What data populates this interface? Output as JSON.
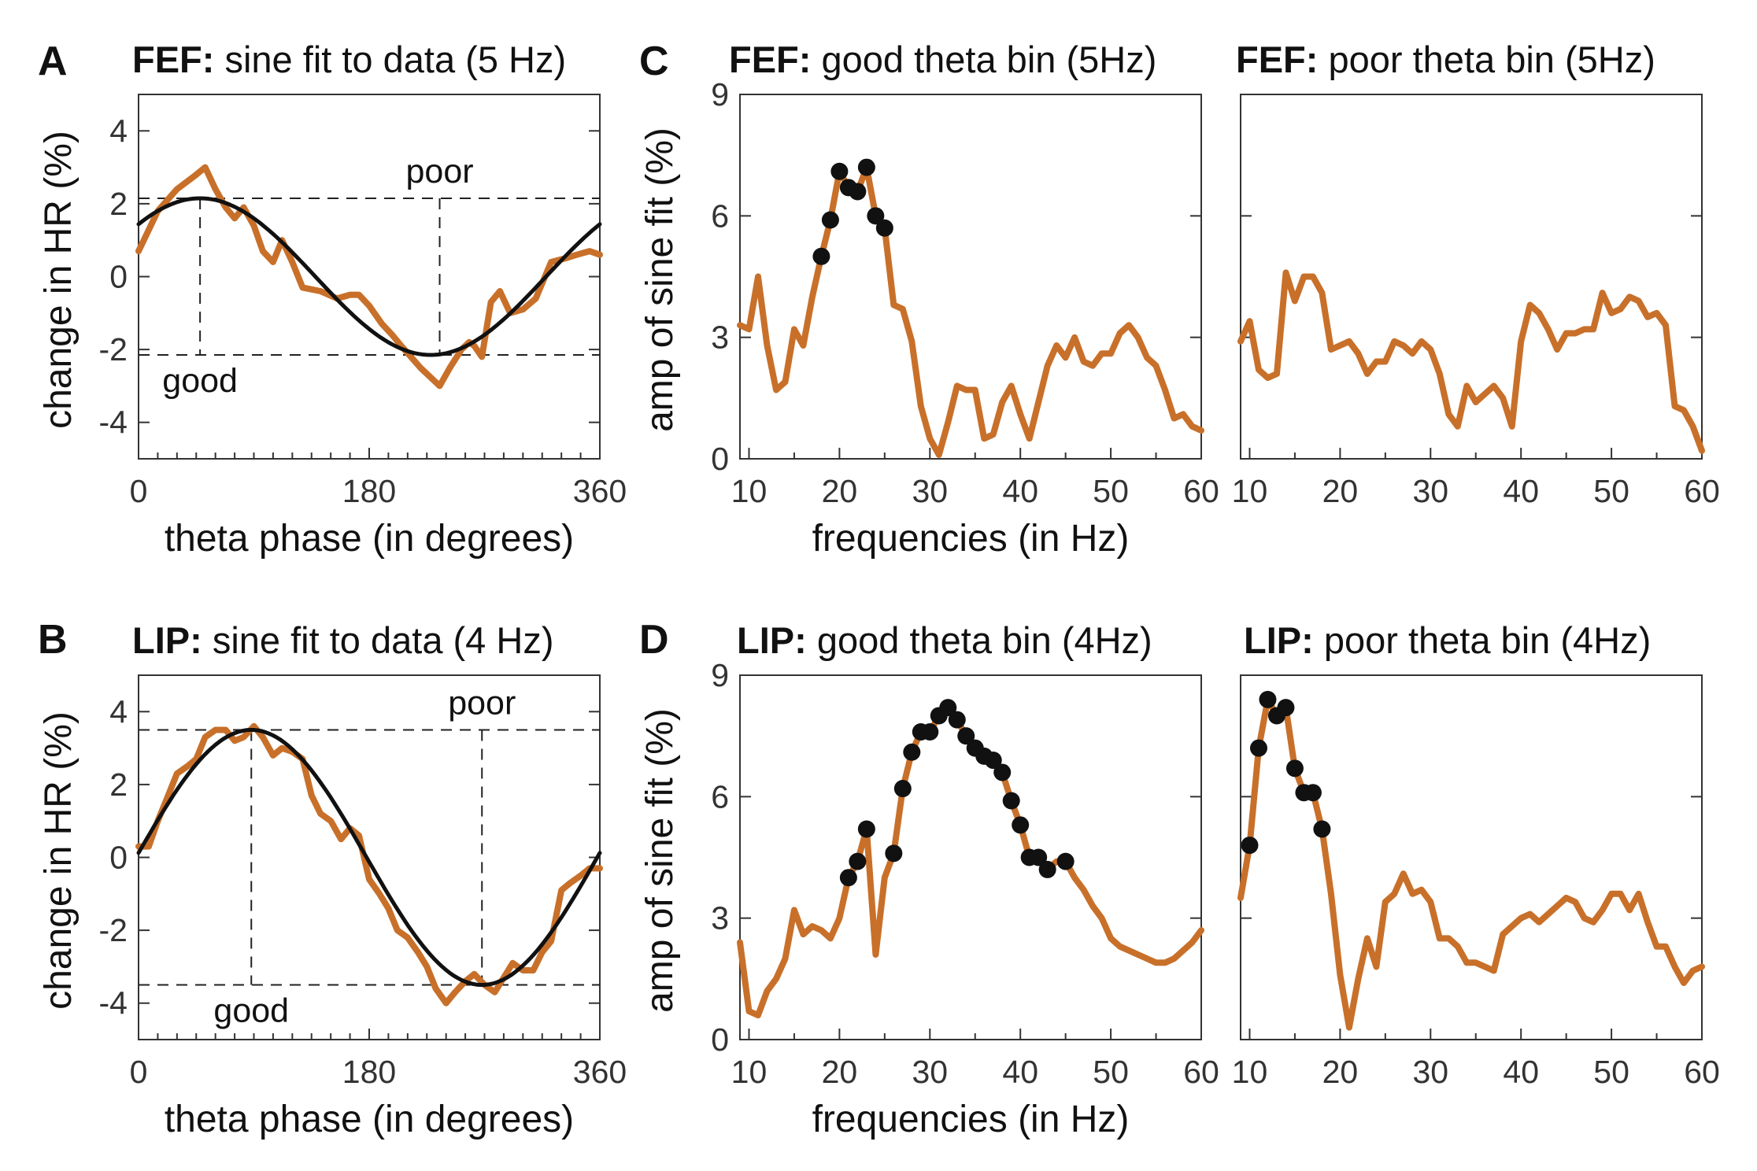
{
  "colors": {
    "data": "#c8702a",
    "fit": "#111111",
    "marker": "#111111"
  },
  "panel_letters": [
    "A",
    "B",
    "C",
    "D"
  ],
  "chart_data": [
    {
      "id": "fef_sine",
      "type": "line",
      "title_bold": "FEF:",
      "title_rest": " sine fit to data (5 Hz)",
      "xlabel": "theta phase (in degrees)",
      "ylabel": "change in HR (%)",
      "xlim": [
        0,
        360
      ],
      "ylim": [
        -5,
        5
      ],
      "xticks": [
        0,
        180,
        360
      ],
      "yticks": [
        -4,
        -2,
        0,
        2,
        4
      ],
      "annotations": {
        "poor": "poor",
        "good": "good"
      },
      "reference": {
        "peak_x": 48,
        "peak_y": 2.15,
        "trough_x": 235,
        "trough_y": -2.15
      },
      "series": [
        {
          "kind": "data",
          "x": [
            0,
            15,
            30,
            45,
            52,
            60,
            68,
            75,
            82,
            90,
            97,
            105,
            112,
            120,
            128,
            142,
            155,
            165,
            172,
            180,
            190,
            198,
            205,
            210,
            220,
            235,
            243,
            252,
            258,
            262,
            268,
            275,
            282,
            290,
            300,
            310,
            322,
            333,
            342,
            352,
            360
          ],
          "y": [
            0.7,
            1.8,
            2.4,
            2.8,
            3.0,
            2.4,
            1.9,
            1.6,
            1.9,
            1.4,
            0.7,
            0.4,
            1.0,
            0.4,
            -0.3,
            -0.4,
            -0.6,
            -0.5,
            -0.5,
            -0.8,
            -1.3,
            -1.6,
            -1.9,
            -2.1,
            -2.5,
            -3.0,
            -2.5,
            -2.0,
            -1.8,
            -1.9,
            -2.2,
            -0.7,
            -0.4,
            -1.0,
            -0.9,
            -0.6,
            0.4,
            0.5,
            0.6,
            0.7,
            0.6
          ]
        },
        {
          "kind": "fit",
          "amplitude": 2.15,
          "peak_deg": 48,
          "offset": 0
        }
      ]
    },
    {
      "id": "fef_good",
      "type": "line",
      "title_bold": "FEF:",
      "title_rest": " good theta bin (5Hz)",
      "xlabel": "frequencies (in Hz)",
      "ylabel": "amp of sine fit (%)",
      "xlim": [
        9,
        60
      ],
      "ylim": [
        0,
        9
      ],
      "xticks": [
        10,
        20,
        30,
        40,
        50,
        60
      ],
      "yticks": [
        0,
        3,
        6,
        9
      ],
      "series": [
        {
          "kind": "data",
          "x": [
            9,
            10,
            11,
            12,
            13,
            14,
            15,
            16,
            17,
            18,
            19,
            20,
            21,
            22,
            23,
            24,
            25,
            26,
            27,
            28,
            29,
            30,
            31,
            32,
            33,
            34,
            35,
            36,
            37,
            38,
            39,
            40,
            41,
            42,
            43,
            44,
            45,
            46,
            47,
            48,
            49,
            50,
            51,
            52,
            53,
            54,
            55,
            56,
            57,
            58,
            59,
            60
          ],
          "y": [
            3.3,
            3.2,
            4.5,
            2.8,
            1.7,
            1.9,
            3.2,
            2.8,
            4.0,
            5.0,
            5.9,
            7.1,
            6.7,
            6.6,
            7.2,
            6.0,
            5.7,
            3.8,
            3.7,
            2.9,
            1.3,
            0.5,
            0.1,
            0.9,
            1.8,
            1.7,
            1.7,
            0.5,
            0.6,
            1.4,
            1.8,
            1.1,
            0.5,
            1.4,
            2.3,
            2.8,
            2.5,
            3.0,
            2.4,
            2.3,
            2.6,
            2.6,
            3.1,
            3.3,
            3.0,
            2.5,
            2.3,
            1.7,
            1.0,
            1.1,
            0.8,
            0.7
          ],
          "markers_x": [
            18,
            19,
            20,
            21,
            22,
            23,
            24,
            25
          ]
        }
      ]
    },
    {
      "id": "fef_poor",
      "type": "line",
      "title_bold": "FEF:",
      "title_rest": " poor theta bin (5Hz)",
      "xlabel": "",
      "ylabel": "",
      "xlim": [
        9,
        60
      ],
      "ylim": [
        0,
        9
      ],
      "xticks": [
        10,
        20,
        30,
        40,
        50,
        60
      ],
      "yticks": [
        0,
        3,
        6,
        9
      ],
      "show_yticklabels": false,
      "series": [
        {
          "kind": "data",
          "x": [
            9,
            10,
            11,
            12,
            13,
            14,
            15,
            16,
            17,
            18,
            19,
            20,
            21,
            22,
            23,
            24,
            25,
            26,
            27,
            28,
            29,
            30,
            31,
            32,
            33,
            34,
            35,
            36,
            37,
            38,
            39,
            40,
            41,
            42,
            43,
            44,
            45,
            46,
            47,
            48,
            49,
            50,
            51,
            52,
            53,
            54,
            55,
            56,
            57,
            58,
            59,
            60
          ],
          "y": [
            2.9,
            3.4,
            2.2,
            2.0,
            2.1,
            4.6,
            3.9,
            4.5,
            4.5,
            4.1,
            2.7,
            2.8,
            2.9,
            2.6,
            2.1,
            2.4,
            2.4,
            2.9,
            2.8,
            2.6,
            2.9,
            2.7,
            2.1,
            1.1,
            0.8,
            1.8,
            1.4,
            1.6,
            1.8,
            1.5,
            0.8,
            2.9,
            3.8,
            3.6,
            3.2,
            2.7,
            3.1,
            3.1,
            3.2,
            3.2,
            4.1,
            3.6,
            3.7,
            4.0,
            3.9,
            3.5,
            3.6,
            3.3,
            1.3,
            1.2,
            0.8,
            0.2
          ]
        }
      ]
    },
    {
      "id": "lip_sine",
      "type": "line",
      "title_bold": "LIP:",
      "title_rest": " sine fit to data (4 Hz)",
      "xlabel": "theta phase (in degrees)",
      "ylabel": "change in HR (%)",
      "xlim": [
        0,
        360
      ],
      "ylim": [
        -5,
        5
      ],
      "xticks": [
        0,
        180,
        360
      ],
      "yticks": [
        -4,
        -2,
        0,
        2,
        4
      ],
      "annotations": {
        "poor": "poor",
        "good": "good"
      },
      "reference": {
        "peak_x": 88,
        "peak_y": 3.5,
        "trough_x": 268,
        "trough_y": -3.5
      },
      "series": [
        {
          "kind": "data",
          "x": [
            0,
            8,
            15,
            22,
            30,
            38,
            45,
            52,
            60,
            68,
            75,
            82,
            90,
            97,
            105,
            112,
            120,
            128,
            135,
            142,
            150,
            158,
            165,
            172,
            180,
            188,
            195,
            202,
            210,
            218,
            225,
            232,
            240,
            247,
            255,
            262,
            270,
            278,
            285,
            292,
            300,
            308,
            315,
            322,
            330,
            337,
            345,
            352,
            360
          ],
          "y": [
            0.3,
            0.3,
            1.0,
            1.6,
            2.3,
            2.5,
            2.7,
            3.3,
            3.5,
            3.5,
            3.2,
            3.3,
            3.6,
            3.3,
            2.8,
            3.0,
            2.9,
            2.7,
            1.7,
            1.2,
            1.0,
            0.5,
            0.8,
            0.6,
            -0.6,
            -1.0,
            -1.4,
            -2.0,
            -2.2,
            -2.6,
            -3.0,
            -3.6,
            -4.0,
            -3.7,
            -3.4,
            -3.2,
            -3.5,
            -3.7,
            -3.3,
            -2.9,
            -3.1,
            -3.1,
            -2.6,
            -2.3,
            -0.9,
            -0.7,
            -0.5,
            -0.3,
            -0.3
          ]
        },
        {
          "kind": "fit",
          "amplitude": 3.5,
          "peak_deg": 88,
          "offset": 0
        }
      ]
    },
    {
      "id": "lip_good",
      "type": "line",
      "title_bold": "LIP:",
      "title_rest": " good theta bin (4Hz)",
      "xlabel": "frequencies (in Hz)",
      "ylabel": "amp of sine fit (%)",
      "xlim": [
        9,
        60
      ],
      "ylim": [
        0,
        9
      ],
      "xticks": [
        10,
        20,
        30,
        40,
        50,
        60
      ],
      "yticks": [
        0,
        3,
        6,
        9
      ],
      "series": [
        {
          "kind": "data",
          "x": [
            9,
            10,
            11,
            12,
            13,
            14,
            15,
            16,
            17,
            18,
            19,
            20,
            21,
            22,
            23,
            24,
            25,
            26,
            27,
            28,
            29,
            30,
            31,
            32,
            33,
            34,
            35,
            36,
            37,
            38,
            39,
            40,
            41,
            42,
            43,
            44,
            45,
            46,
            47,
            48,
            49,
            50,
            51,
            52,
            53,
            54,
            55,
            56,
            57,
            58,
            59,
            60
          ],
          "y": [
            2.4,
            0.7,
            0.6,
            1.2,
            1.5,
            2.0,
            3.2,
            2.6,
            2.8,
            2.7,
            2.5,
            3.0,
            4.0,
            4.4,
            5.2,
            2.1,
            4.0,
            4.6,
            6.2,
            7.1,
            7.6,
            7.6,
            8.0,
            8.2,
            7.9,
            7.5,
            7.2,
            7.0,
            6.9,
            6.6,
            5.9,
            5.3,
            4.5,
            4.5,
            4.2,
            4.4,
            4.4,
            4.0,
            3.7,
            3.3,
            3.0,
            2.5,
            2.3,
            2.2,
            2.1,
            2.0,
            1.9,
            1.9,
            2.0,
            2.2,
            2.4,
            2.7
          ],
          "markers_x": [
            21,
            22,
            23,
            26,
            27,
            28,
            29,
            30,
            31,
            32,
            33,
            34,
            35,
            36,
            37,
            38,
            39,
            40,
            41,
            42,
            43,
            45
          ]
        }
      ]
    },
    {
      "id": "lip_poor",
      "type": "line",
      "title_bold": "LIP:",
      "title_rest": " poor theta bin (4Hz)",
      "xlabel": "",
      "ylabel": "",
      "xlim": [
        9,
        60
      ],
      "ylim": [
        0,
        9
      ],
      "xticks": [
        10,
        20,
        30,
        40,
        50,
        60
      ],
      "yticks": [
        0,
        3,
        6,
        9
      ],
      "show_yticklabels": false,
      "series": [
        {
          "kind": "data",
          "x": [
            9,
            10,
            11,
            12,
            13,
            14,
            15,
            16,
            17,
            18,
            19,
            20,
            21,
            22,
            23,
            24,
            25,
            26,
            27,
            28,
            29,
            30,
            31,
            32,
            33,
            34,
            35,
            36,
            37,
            38,
            39,
            40,
            41,
            42,
            43,
            44,
            45,
            46,
            47,
            48,
            49,
            50,
            51,
            52,
            53,
            54,
            55,
            56,
            57,
            58,
            59,
            60
          ],
          "y": [
            3.5,
            4.8,
            7.2,
            8.4,
            8.0,
            8.2,
            6.7,
            6.1,
            6.1,
            5.2,
            3.6,
            1.6,
            0.3,
            1.5,
            2.5,
            1.8,
            3.4,
            3.6,
            4.1,
            3.6,
            3.7,
            3.4,
            2.5,
            2.5,
            2.3,
            1.9,
            1.9,
            1.8,
            1.7,
            2.6,
            2.8,
            3.0,
            3.1,
            2.9,
            3.1,
            3.3,
            3.5,
            3.4,
            3.0,
            2.9,
            3.2,
            3.6,
            3.6,
            3.2,
            3.6,
            2.9,
            2.3,
            2.3,
            1.8,
            1.4,
            1.7,
            1.8
          ],
          "markers_x": [
            10,
            11,
            12,
            13,
            14,
            15,
            16,
            17,
            18
          ]
        }
      ]
    }
  ]
}
